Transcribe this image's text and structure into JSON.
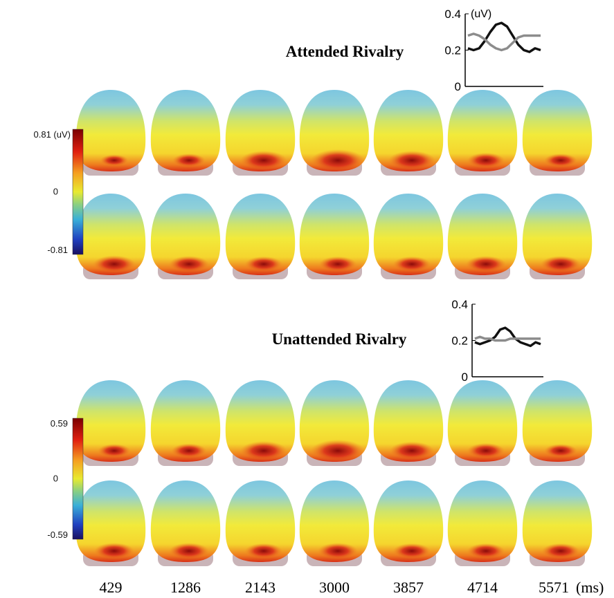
{
  "chart_data": [
    {
      "type": "line",
      "title": "Attended Rivalry",
      "y_label": "(uV)",
      "ylim": [
        0,
        0.4
      ],
      "yticks": [
        0,
        0.2,
        0.4
      ],
      "series": [
        {
          "color": "#111111",
          "values": [
            0.21,
            0.2,
            0.21,
            0.25,
            0.3,
            0.34,
            0.35,
            0.33,
            0.28,
            0.23,
            0.2,
            0.19,
            0.21,
            0.2
          ]
        },
        {
          "color": "#8c8c8c",
          "values": [
            0.28,
            0.29,
            0.28,
            0.26,
            0.23,
            0.21,
            0.2,
            0.21,
            0.24,
            0.27,
            0.28,
            0.28,
            0.28,
            0.28
          ]
        }
      ]
    },
    {
      "type": "line",
      "title": "Unattended Rivalry",
      "ylim": [
        0,
        0.4
      ],
      "yticks": [
        0,
        0.2,
        0.4
      ],
      "series": [
        {
          "color": "#111111",
          "values": [
            0.19,
            0.18,
            0.19,
            0.2,
            0.22,
            0.26,
            0.27,
            0.25,
            0.21,
            0.19,
            0.18,
            0.17,
            0.19,
            0.18
          ]
        },
        {
          "color": "#8c8c8c",
          "values": [
            0.21,
            0.22,
            0.21,
            0.21,
            0.2,
            0.2,
            0.2,
            0.21,
            0.21,
            0.21,
            0.21,
            0.21,
            0.21,
            0.21
          ]
        }
      ]
    }
  ],
  "colorbars": [
    {
      "top": "0.81 (uV)",
      "middle": "0",
      "bottom": "-0.81"
    },
    {
      "top": "0.59",
      "middle": "0",
      "bottom": "-0.59"
    }
  ],
  "times": [
    "429",
    "1286",
    "2143",
    "3000",
    "3857",
    "4714",
    "5571"
  ],
  "time_unit": "(ms)"
}
